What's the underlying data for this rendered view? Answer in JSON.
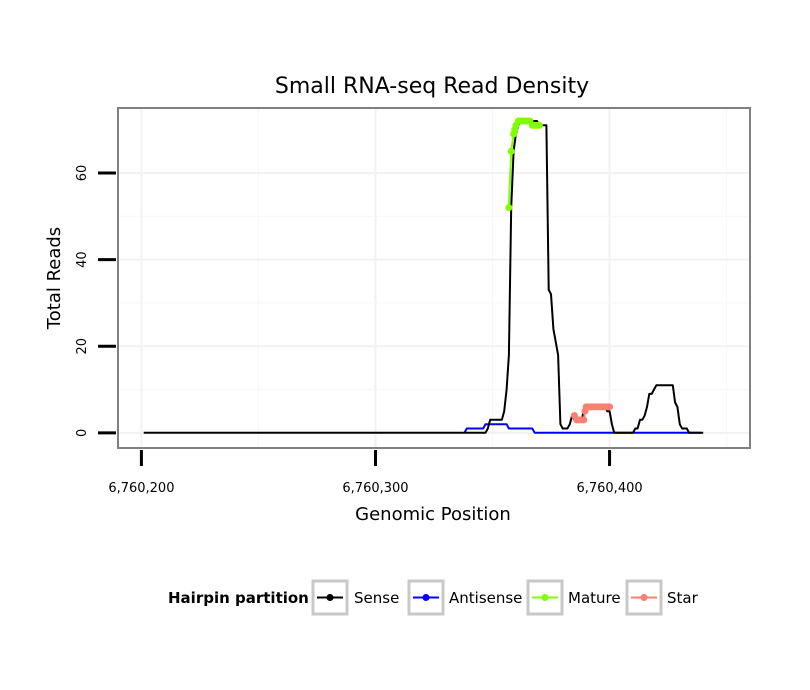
{
  "chart_data": {
    "type": "line",
    "title": "Small RNA-seq Read Density",
    "xlabel": "Genomic Position",
    "ylabel": "Total Reads",
    "xlim": [
      6760190,
      6760460
    ],
    "ylim": [
      -3.5,
      75
    ],
    "x_ticks": [
      6760200,
      6760300,
      6760400
    ],
    "x_tick_labels": [
      "6,760,200",
      "6,760,300",
      "6,760,400"
    ],
    "y_ticks": [
      0,
      20,
      40,
      60
    ],
    "y_tick_labels": [
      "0",
      "20",
      "40",
      "60"
    ],
    "grid": true,
    "legend": {
      "title": "Hairpin partition",
      "position": "bottom",
      "entries": [
        {
          "label": "Sense",
          "color": "#000000"
        },
        {
          "label": "Antisense",
          "color": "#0000ff"
        },
        {
          "label": "Mature",
          "color": "#7fff00"
        },
        {
          "label": "Star",
          "color": "#fa8072"
        }
      ]
    },
    "series": [
      {
        "name": "Sense",
        "color": "#000000",
        "style": "line",
        "points": [
          [
            6760201,
            0
          ],
          [
            6760347,
            0
          ],
          [
            6760348,
            1
          ],
          [
            6760349,
            3
          ],
          [
            6760354,
            3
          ],
          [
            6760355,
            5
          ],
          [
            6760356,
            10
          ],
          [
            6760357,
            18
          ],
          [
            6760358,
            52
          ],
          [
            6760359,
            65
          ],
          [
            6760360,
            69
          ],
          [
            6760361,
            71
          ],
          [
            6760362,
            72
          ],
          [
            6760369,
            72
          ],
          [
            6760370,
            71
          ],
          [
            6760373,
            71
          ],
          [
            6760374,
            33
          ],
          [
            6760375,
            32
          ],
          [
            6760376,
            24
          ],
          [
            6760378,
            18
          ],
          [
            6760379,
            2
          ],
          [
            6760380,
            1
          ],
          [
            6760382,
            1
          ],
          [
            6760383,
            2
          ],
          [
            6760384,
            4
          ],
          [
            6760385,
            3
          ],
          [
            6760388,
            3
          ],
          [
            6760389,
            5
          ],
          [
            6760390,
            6
          ],
          [
            6760398,
            6
          ],
          [
            6760399,
            5
          ],
          [
            6760400,
            5
          ],
          [
            6760401,
            2
          ],
          [
            6760402,
            0
          ],
          [
            6760410,
            0
          ],
          [
            6760411,
            1
          ],
          [
            6760412,
            1
          ],
          [
            6760413,
            3
          ],
          [
            6760414,
            3
          ],
          [
            6760415,
            4
          ],
          [
            6760416,
            6
          ],
          [
            6760417,
            9
          ],
          [
            6760418,
            9
          ],
          [
            6760419,
            10
          ],
          [
            6760420,
            11
          ],
          [
            6760427,
            11
          ],
          [
            6760428,
            7
          ],
          [
            6760429,
            6
          ],
          [
            6760430,
            2
          ],
          [
            6760431,
            1
          ],
          [
            6760433,
            1
          ],
          [
            6760434,
            0
          ],
          [
            6760440,
            0
          ]
        ]
      },
      {
        "name": "Antisense",
        "color": "#0000ff",
        "style": "line",
        "points": [
          [
            6760338,
            0
          ],
          [
            6760339,
            1
          ],
          [
            6760346,
            1
          ],
          [
            6760347,
            2
          ],
          [
            6760356,
            2
          ],
          [
            6760357,
            1
          ],
          [
            6760367,
            1
          ],
          [
            6760368,
            0
          ],
          [
            6760439,
            0
          ]
        ]
      },
      {
        "name": "Mature",
        "color": "#7fff00",
        "style": "points",
        "points": [
          [
            6760357,
            52
          ],
          [
            6760358,
            65
          ],
          [
            6760359,
            69
          ],
          [
            6760359.5,
            70
          ],
          [
            6760360,
            71
          ],
          [
            6760361,
            72
          ],
          [
            6760362,
            72
          ],
          [
            6760363,
            72
          ],
          [
            6760364,
            72
          ],
          [
            6760365,
            72
          ],
          [
            6760366,
            72
          ],
          [
            6760367,
            71
          ],
          [
            6760368,
            71
          ],
          [
            6760369,
            71
          ],
          [
            6760370,
            71
          ]
        ]
      },
      {
        "name": "Star",
        "color": "#fa8072",
        "style": "points",
        "points": [
          [
            6760385,
            4
          ],
          [
            6760386,
            3
          ],
          [
            6760387,
            3
          ],
          [
            6760388,
            3
          ],
          [
            6760389,
            3
          ],
          [
            6760389.5,
            5
          ],
          [
            6760390,
            6
          ],
          [
            6760391,
            6
          ],
          [
            6760392,
            6
          ],
          [
            6760393,
            6
          ],
          [
            6760394,
            6
          ],
          [
            6760395,
            6
          ],
          [
            6760396,
            6
          ],
          [
            6760397,
            6
          ],
          [
            6760398,
            6
          ],
          [
            6760399,
            6
          ],
          [
            6760400,
            6
          ]
        ]
      }
    ]
  }
}
